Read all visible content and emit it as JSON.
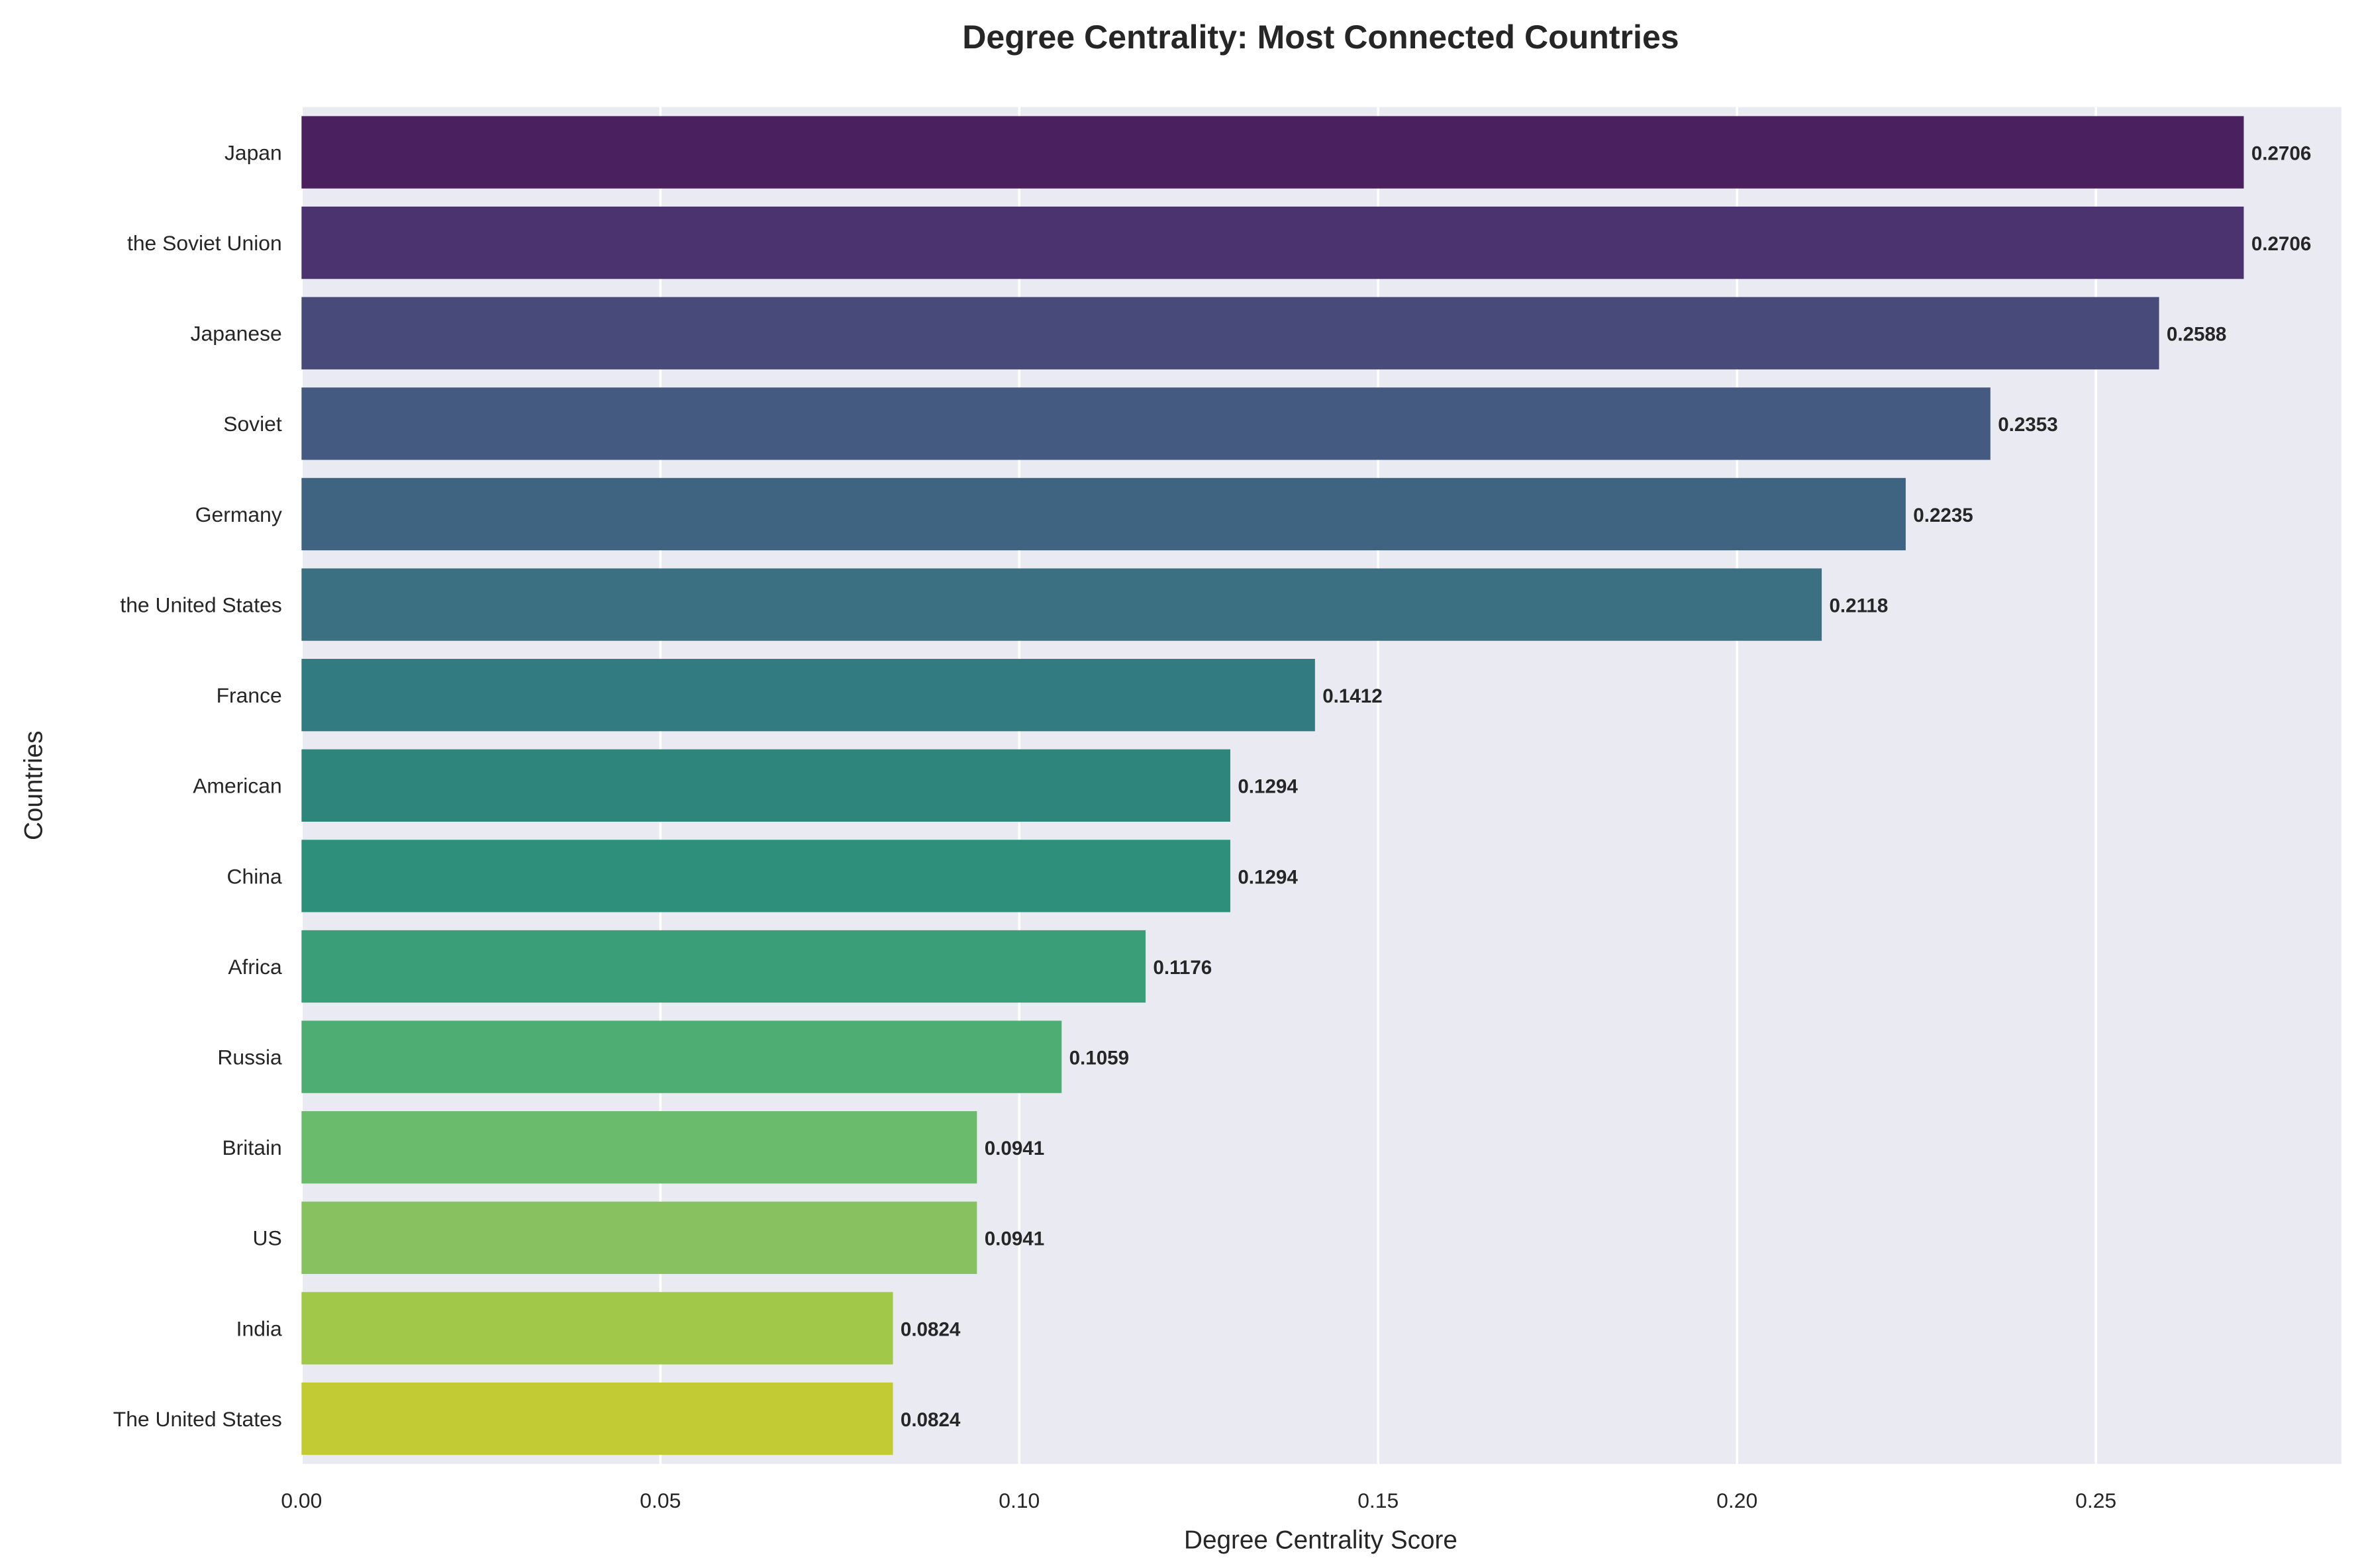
{
  "chart_data": {
    "type": "bar",
    "orientation": "horizontal",
    "title": "Degree Centrality: Most Connected Countries",
    "xlabel": "Degree Centrality Score",
    "ylabel": "Countries",
    "xlim": [
      0,
      0.2842
    ],
    "xticks": [
      0.0,
      0.05,
      0.1,
      0.15,
      0.2,
      0.25
    ],
    "xtick_labels": [
      "0.00",
      "0.05",
      "0.10",
      "0.15",
      "0.20",
      "0.25"
    ],
    "grid": true,
    "categories": [
      "Japan",
      "the Soviet Union",
      "Japanese",
      "Soviet",
      "Germany",
      "the United States",
      "France",
      "American",
      "China",
      "Africa",
      "Russia",
      "Britain",
      "US",
      "India",
      "The United States"
    ],
    "values": [
      0.2706,
      0.2706,
      0.2588,
      0.2353,
      0.2235,
      0.2118,
      0.1412,
      0.1294,
      0.1294,
      0.1176,
      0.1059,
      0.0941,
      0.0941,
      0.0824,
      0.0824
    ],
    "value_labels": [
      "0.2706",
      "0.2706",
      "0.2588",
      "0.2353",
      "0.2235",
      "0.2118",
      "0.1412",
      "0.1294",
      "0.1294",
      "0.1176",
      "0.1059",
      "0.0941",
      "0.0941",
      "0.0824",
      "0.0824"
    ],
    "colors": [
      "#4a205e",
      "#4a336f",
      "#484a7a",
      "#445a80",
      "#3e6482",
      "#3a7082",
      "#327b81",
      "#2e857c",
      "#2e8f7b",
      "#3a9e78",
      "#4dad72",
      "#6bbb6c",
      "#88c260",
      "#a2c84a",
      "#c2ca34"
    ],
    "background": "#eaeaf2"
  }
}
